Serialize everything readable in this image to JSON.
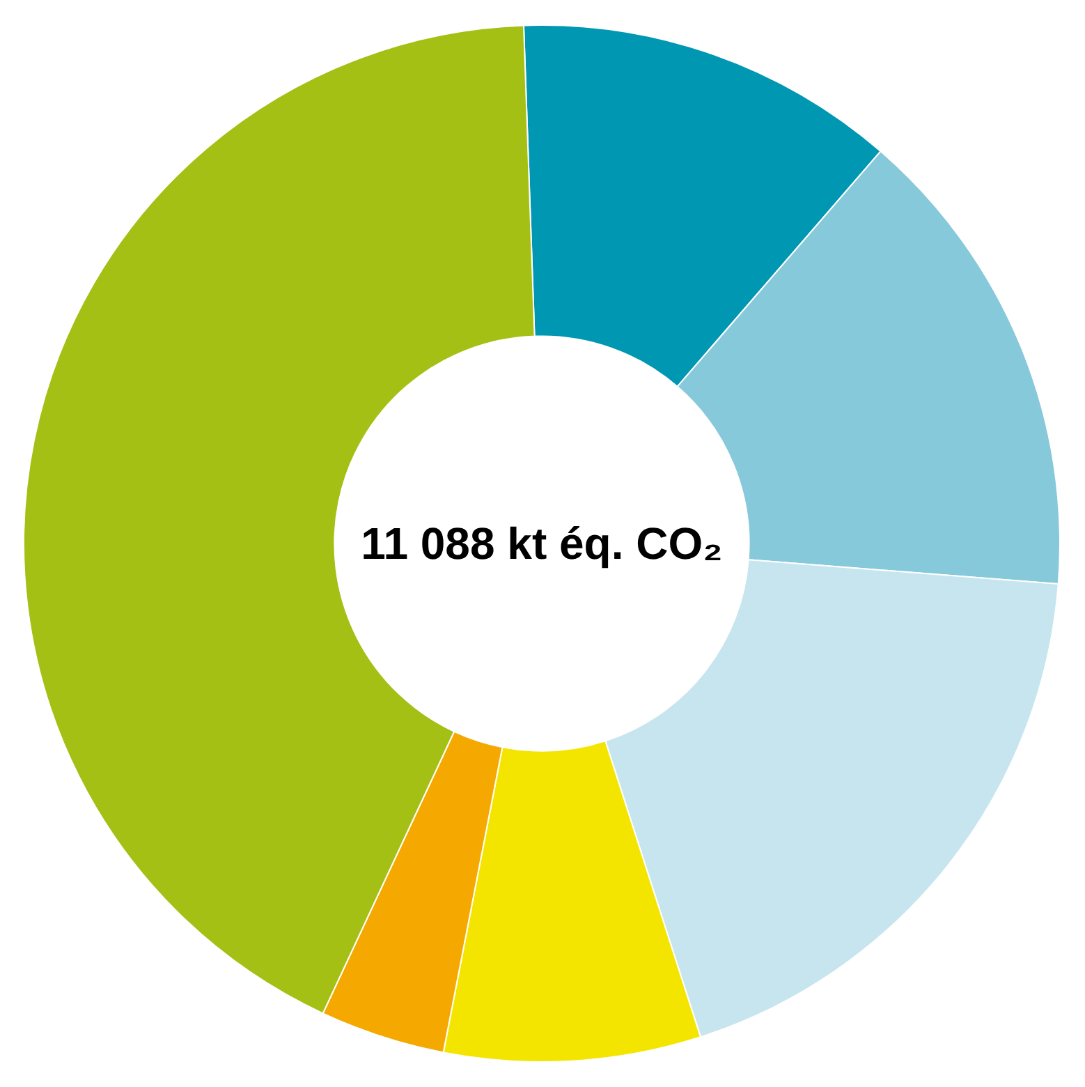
{
  "chart_data": {
    "type": "donut",
    "title": "11 088 kt éq. CO₂",
    "categories": [
      null,
      null,
      null,
      null,
      null,
      null
    ],
    "values": [
      11.9,
      14.9,
      18.8,
      8.0,
      3.9,
      42.5
    ],
    "colors": [
      "#0097b2",
      "#86c9da",
      "#c7e5ee",
      "#f4e500",
      "#f5a800",
      "#a4c014"
    ]
  }
}
